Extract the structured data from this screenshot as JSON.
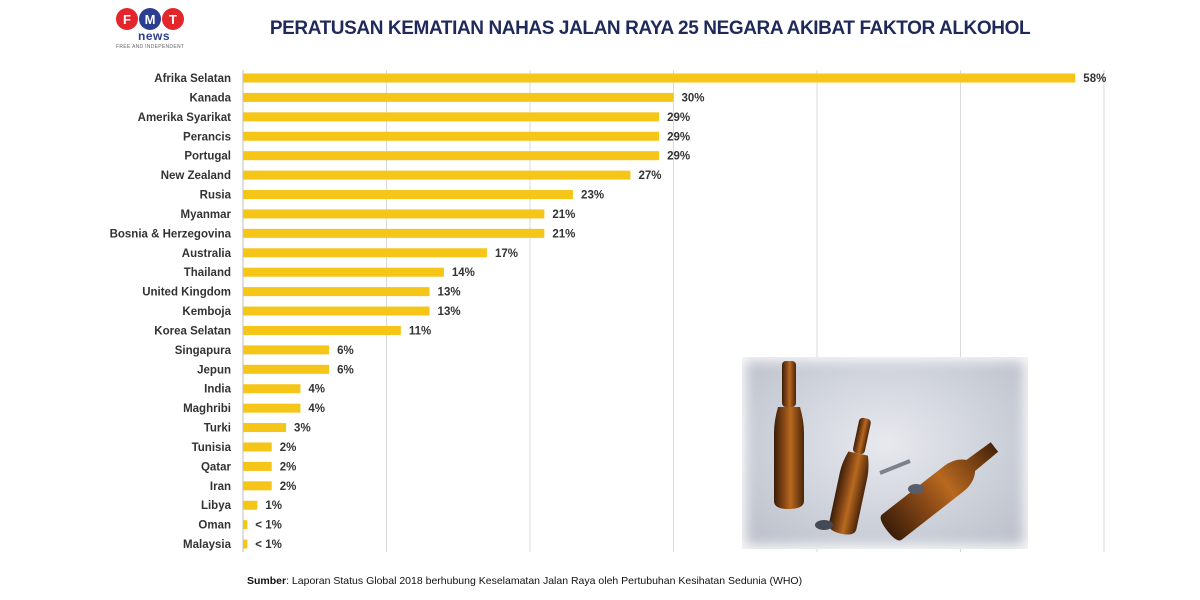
{
  "logo": {
    "letters": [
      "F",
      "M",
      "T"
    ],
    "colors": [
      "#e3262b",
      "#2b3e8f",
      "#e3262b"
    ],
    "word": "news",
    "tagline": "FREE AND INDEPENDENT"
  },
  "title": "PERATUSAN KEMATIAN NAHAS JALAN RAYA 25 NEGARA AKIBAT FAKTOR ALKOHOL",
  "source": {
    "label": "Sumber",
    "text": ": Laporan Status Global 2018 berhubung Keselamatan Jalan Raya oleh Pertubuhan Kesihatan Sedunia (WHO)"
  },
  "photo": {
    "subject": "beer-bottles"
  },
  "chart_data": {
    "type": "bar",
    "orientation": "horizontal",
    "bar_color": "#f5c518",
    "grid": true,
    "xlim": [
      0,
      60
    ],
    "categories": [
      "Afrika Selatan",
      "Kanada",
      "Amerika Syarikat",
      "Perancis",
      "Portugal",
      "New Zealand",
      "Rusia",
      "Myanmar",
      "Bosnia & Herzegovina",
      "Australia",
      "Thailand",
      "United Kingdom",
      "Kemboja",
      "Korea Selatan",
      "Singapura",
      "Jepun",
      "India",
      "Maghribi",
      "Turki",
      "Tunisia",
      "Qatar",
      "Iran",
      "Libya",
      "Oman",
      "Malaysia"
    ],
    "values": [
      58,
      30,
      29,
      29,
      29,
      27,
      23,
      21,
      21,
      17,
      14,
      13,
      13,
      11,
      6,
      6,
      4,
      4,
      3,
      2,
      2,
      2,
      1,
      0.3,
      0.3
    ],
    "labels": [
      "58%",
      "30%",
      "29%",
      "29%",
      "29%",
      "27%",
      "23%",
      "21%",
      "21%",
      "17%",
      "14%",
      "13%",
      "13%",
      "11%",
      "6%",
      "6%",
      "4%",
      "4%",
      "3%",
      "2%",
      "2%",
      "2%",
      "1%",
      "< 1%",
      "< 1%"
    ]
  }
}
